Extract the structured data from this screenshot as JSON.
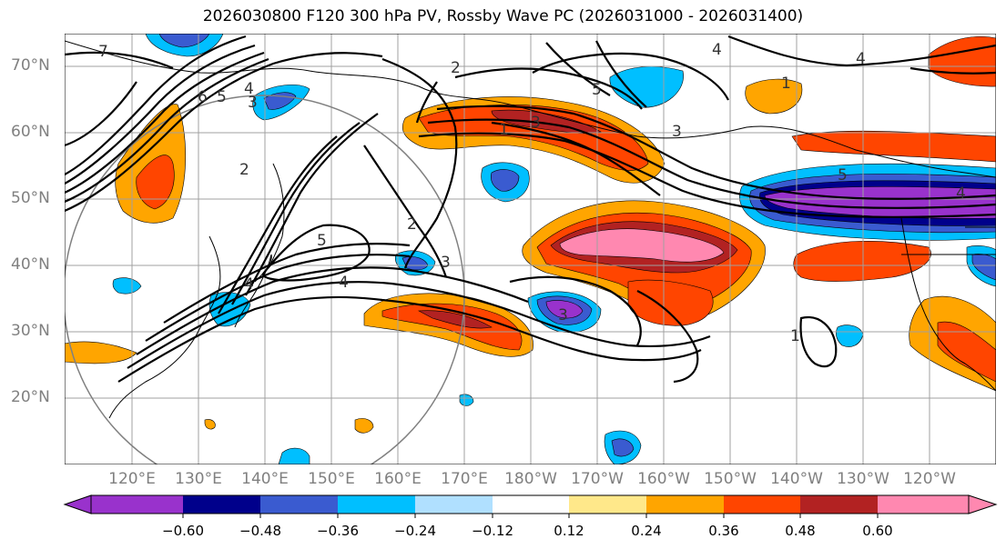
{
  "title": "2026030800 F120 300 hPa PV, Rossby Wave PC (2026031000 - 2026031400)",
  "lat_labels": [
    "70°N",
    "60°N",
    "50°N",
    "40°N",
    "30°N",
    "20°N"
  ],
  "lon_labels": [
    "120°E",
    "130°E",
    "140°E",
    "150°E",
    "160°E",
    "170°E",
    "180°W",
    "170°W",
    "160°W",
    "150°W",
    "140°W",
    "130°W",
    "120°W"
  ],
  "colorbar": {
    "ticks": [
      "−0.60",
      "−0.48",
      "−0.36",
      "−0.24",
      "−0.12",
      "0.12",
      "0.24",
      "0.36",
      "0.48",
      "0.60"
    ],
    "colors": [
      "#9932cc",
      "#00008b",
      "#3a5bd0",
      "#00bfff",
      "#b0e0ff",
      "#ffffff",
      "#ffe88a",
      "#ffa500",
      "#ff4500",
      "#b22222",
      "#ff88b0"
    ]
  },
  "contour_labels": [
    "7",
    "6",
    "5",
    "4",
    "3",
    "2",
    "4",
    "5",
    "4",
    "3",
    "2",
    "1",
    "3",
    "5",
    "4",
    "4",
    "1",
    "2",
    "3",
    "5",
    "4",
    "3",
    "1",
    "3",
    "5",
    "4",
    "1"
  ]
}
